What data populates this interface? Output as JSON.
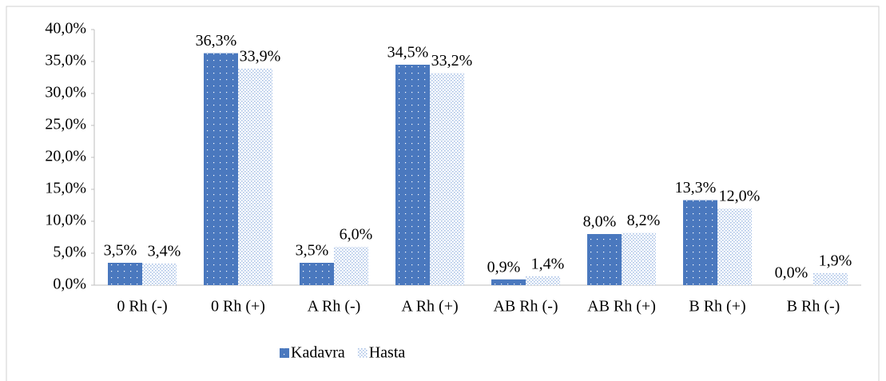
{
  "chart_data": {
    "type": "bar",
    "categories": [
      "0 Rh (-)",
      "0 Rh (+)",
      "A Rh (-)",
      "A Rh (+)",
      "AB Rh (-)",
      "AB Rh (+)",
      "B Rh (+)",
      "B Rh (-)"
    ],
    "series": [
      {
        "name": "Kadavra",
        "color": "#4a78be",
        "values": [
          3.5,
          36.3,
          3.5,
          34.5,
          0.9,
          8.0,
          13.3,
          0.0
        ],
        "value_labels": [
          "3,5%",
          "36,3%",
          "3,5%",
          "34,5%",
          "0,9%",
          "8,0%",
          "13,3%",
          "0,0%"
        ]
      },
      {
        "name": "Hasta",
        "color": "#a9c2e6",
        "values": [
          3.4,
          33.9,
          6.0,
          33.2,
          1.4,
          8.2,
          12.0,
          1.9
        ],
        "value_labels": [
          "3,4%",
          "33,9%",
          "6,0%",
          "33,2%",
          "1,4%",
          "8,2%",
          "12,0%",
          "1,9%"
        ]
      }
    ],
    "ylim": [
      0,
      40
    ],
    "yticks": [
      {
        "value": 0,
        "label": "0,0%"
      },
      {
        "value": 5,
        "label": "5,0%"
      },
      {
        "value": 10,
        "label": "10,0%"
      },
      {
        "value": 15,
        "label": "15,0%"
      },
      {
        "value": 20,
        "label": "20,0%"
      },
      {
        "value": 25,
        "label": "25,0%"
      },
      {
        "value": 30,
        "label": "30,0%"
      },
      {
        "value": 35,
        "label": "35,0%"
      },
      {
        "value": 40,
        "label": "40,0%"
      }
    ],
    "grid": false,
    "legend": "bottom"
  }
}
